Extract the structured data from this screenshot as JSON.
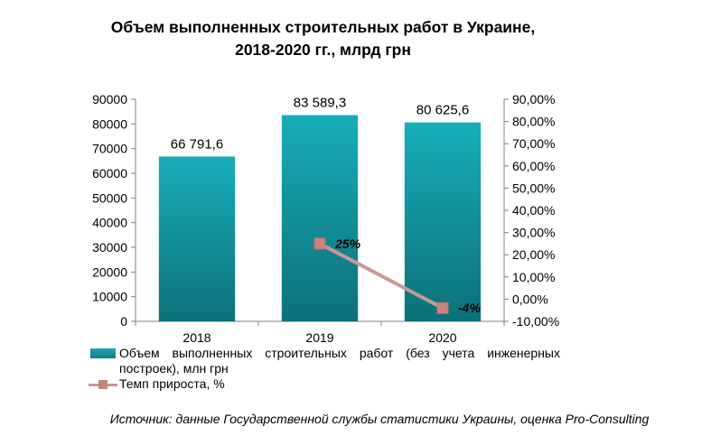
{
  "chart_data": {
    "type": "bar+line",
    "title": "Объем выполненных строительных работ в Украине, 2018-2020 гг., млрд грн",
    "title_lines": [
      "Объем выполненных строительных работ в Украине,",
      "2018-2020 гг., млрд грн"
    ],
    "categories": [
      "2018",
      "2019",
      "2020"
    ],
    "series": [
      {
        "name": "Объем выполненных  строительных работ (без учета инженерных построек), млн грн",
        "type": "bar",
        "axis": "left",
        "values": [
          66791.6,
          83589.3,
          80625.6
        ],
        "labels": [
          "66 791,6",
          "83 589,3",
          "80 625,6"
        ],
        "color": "#109aa4"
      },
      {
        "name": "Темп прироста, %",
        "type": "line",
        "axis": "right",
        "x": [
          "2019",
          "2020"
        ],
        "values": [
          25,
          -4
        ],
        "labels": [
          "25%",
          "-4%"
        ],
        "color": "#c79a93",
        "marker_color": "#c7857c"
      }
    ],
    "y_left": {
      "ylim": [
        0,
        90000
      ],
      "ticks": [
        "90000",
        "80000",
        "70000",
        "60000",
        "50000",
        "40000",
        "30000",
        "20000",
        "10000",
        "0"
      ]
    },
    "y_right": {
      "ylim": [
        -10,
        90
      ],
      "ticks": [
        "90,00%",
        "80,00%",
        "70,00%",
        "60,00%",
        "50,00%",
        "40,00%",
        "30,00%",
        "20,00%",
        "10,00%",
        "0,00%",
        "-10,00%"
      ]
    },
    "grid": false,
    "legend_position": "bottom"
  },
  "source": "Источник: данные Государственной службы статистики Украины, оценка Pro-Consulting"
}
